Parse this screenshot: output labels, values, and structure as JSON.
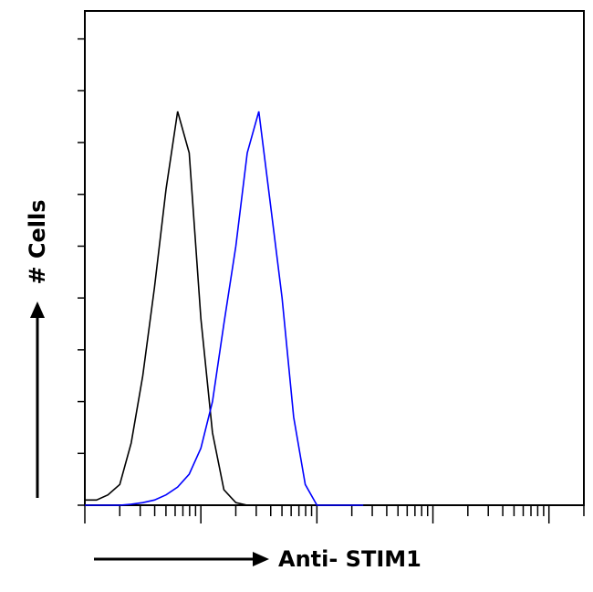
{
  "chart_data": {
    "type": "line",
    "xlabel": "Anti- STIM1",
    "ylabel": "# Cells",
    "x": [
      1,
      1.26,
      1.58,
      2,
      2.51,
      3.16,
      3.98,
      5.01,
      6.31,
      7.94,
      10,
      12.6,
      15.8,
      20,
      25.1,
      31.6,
      39.8,
      50.1,
      63.1,
      79.4,
      100,
      126,
      158,
      200,
      251
    ],
    "series": [
      {
        "color": "#000000",
        "values": [
          0.1,
          0.1,
          0.2,
          0.4,
          1.2,
          2.5,
          4.2,
          6.1,
          7.6,
          6.8,
          3.6,
          1.4,
          0.3,
          0.05,
          0,
          0,
          0,
          0,
          0,
          0,
          0,
          0,
          0,
          0,
          0
        ]
      },
      {
        "color": "#0000ff",
        "values": [
          0,
          0,
          0,
          0,
          0.02,
          0.05,
          0.1,
          0.2,
          0.35,
          0.6,
          1.1,
          2.0,
          3.5,
          5.0,
          6.8,
          7.6,
          5.8,
          4.0,
          1.7,
          0.4,
          0,
          0,
          0,
          0,
          0
        ]
      }
    ],
    "xlim": [
      1,
      20000
    ],
    "xscale": "log",
    "xticks": [
      1,
      2,
      3,
      4,
      5,
      6,
      7,
      8,
      9,
      10,
      20,
      30,
      40,
      50,
      60,
      70,
      80,
      90,
      100,
      200,
      300,
      400,
      500,
      600,
      700,
      800,
      900,
      1000,
      2000,
      3000,
      4000,
      5000,
      6000,
      7000,
      8000,
      9000,
      10000,
      20000
    ],
    "ylim": [
      0,
      9.54
    ],
    "yticks": [
      0,
      1,
      2,
      3,
      4,
      5,
      6,
      7,
      8,
      9
    ]
  }
}
